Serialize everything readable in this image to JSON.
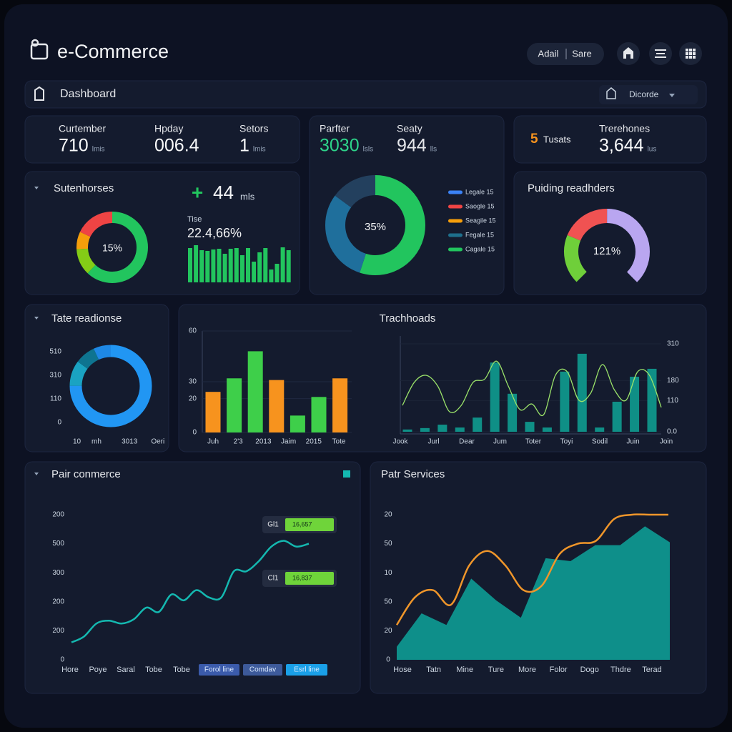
{
  "header": {
    "title": "e-Commerce",
    "user": "Adail",
    "store": "Sare"
  },
  "toolbar": {
    "title": "Dashboard",
    "filter": "Dicorde"
  },
  "stats_left": [
    {
      "label": "Curtember",
      "value": "710",
      "unit": "lmis"
    },
    {
      "label": "Hpday",
      "value": "006.4"
    },
    {
      "label": "Setors",
      "value": "1",
      "unit": "lmis"
    }
  ],
  "stats_mid": [
    {
      "label": "Parfter",
      "value": "3030",
      "unit": "lsls"
    },
    {
      "label": "Seaty",
      "value": "944",
      "unit": "lls"
    }
  ],
  "stats_right": [
    {
      "value": "5",
      "label": "Tusats"
    },
    {
      "label": "Trerehones",
      "value": "3,644",
      "unit": "lus"
    }
  ],
  "subscribers": {
    "title": "Sutenhorses",
    "donut": {
      "center": "15%",
      "values": [
        62,
        12,
        8,
        18
      ],
      "colors": [
        "#22c55e",
        "#84cc16",
        "#f59e0b",
        "#ef4444"
      ]
    },
    "change_sign": "+",
    "change": "44",
    "change_unit": "mls",
    "sub_label": "Tise",
    "rate": "22.4,66%",
    "bars": {
      "color": "#22c55e",
      "values": [
        48,
        52,
        45,
        44,
        46,
        47,
        40,
        47,
        48,
        38,
        48,
        29,
        42,
        48,
        18,
        26,
        49,
        45
      ]
    }
  },
  "share": {
    "donut": {
      "center": "35%",
      "values": [
        55,
        30,
        15
      ],
      "colors": [
        "#22c55e",
        "#1f6f9c",
        "#23405e"
      ]
    },
    "legend": [
      {
        "name": "Legale 15",
        "color": "#3b82f6"
      },
      {
        "name": "Saogle 15",
        "color": "#ef4444"
      },
      {
        "name": "Seagile 15",
        "color": "#f59e0b"
      },
      {
        "name": "Fegale 15",
        "color": "#1e6f8c"
      },
      {
        "name": "Cagale 15",
        "color": "#22c55e"
      }
    ]
  },
  "gauge": {
    "title": "Puiding readhders",
    "center": "121%",
    "values": [
      25,
      25,
      50
    ],
    "colors": [
      "#6fcf3a",
      "#f05252",
      "#b9a6f0"
    ]
  },
  "response": {
    "title": "Tate readionse",
    "y_labels": [
      "510",
      "310",
      "110",
      "0"
    ],
    "x_labels": [
      "10",
      "mh",
      "3013",
      "Oeri"
    ],
    "donut": {
      "values": [
        75,
        10,
        8,
        7
      ],
      "colors": [
        "#2196f3",
        "#1aa3c2",
        "#0e7490",
        "#1e88e5"
      ]
    }
  },
  "trends": {
    "title": "Trachhoads",
    "bars": {
      "ylim": [
        0,
        60
      ],
      "yticks": [
        0,
        20,
        30,
        60
      ],
      "values": [
        24,
        32,
        48,
        31,
        10,
        21,
        32
      ],
      "colors": [
        "#f7931e",
        "#3ecf4a",
        "#3ecf4a",
        "#f7931e",
        "#3ecf4a",
        "#3ecf4a",
        "#f7931e"
      ],
      "x_labels": [
        "Juh",
        "2'3",
        "2013",
        "Jaim",
        "2015",
        "Tote"
      ]
    },
    "combo": {
      "ylim": [
        0,
        310
      ],
      "yticks": [
        {
          "value": 0,
          "label": "0.0"
        },
        110,
        180,
        310
      ],
      "bar_color": "#0f8f86",
      "line_color": "#9be36a",
      "bars": [
        8,
        13,
        25,
        15,
        50,
        244,
        134,
        35,
        15,
        212,
        275,
        15,
        106,
        194,
        222
      ],
      "line": [
        93,
        174,
        199,
        161,
        71,
        93,
        174,
        186,
        249,
        161,
        78,
        98,
        60,
        199,
        212,
        111,
        136,
        237,
        149,
        111,
        212,
        199,
        86
      ],
      "x_labels": [
        "Jook",
        "Jurl",
        "Dear",
        "Jum",
        "Toter",
        "Toyi",
        "Sodil",
        "Juin",
        "Join"
      ]
    }
  },
  "commerce": {
    "title": "Pair conmerce",
    "ylim": [
      0,
      100
    ],
    "y_labels": [
      "200",
      "500",
      "300",
      "200",
      "200",
      "0"
    ],
    "color": "#14b8b0",
    "values": [
      12,
      16,
      25,
      27,
      25,
      28,
      36,
      33,
      45,
      41,
      48,
      43,
      43,
      61,
      61,
      68,
      78,
      82,
      78,
      80
    ],
    "x_labels": [
      "Hore",
      "Poye",
      "Saral",
      "Tobe",
      "Tobe"
    ],
    "tooltips": [
      {
        "name": "Gl1",
        "value": "16,657"
      },
      {
        "name": "Cl1",
        "value": "16,837"
      }
    ],
    "legend": [
      {
        "name": "Forol line",
        "color": "#3b5bab"
      },
      {
        "name": "Comdav",
        "color": "#3d5a9a"
      },
      {
        "name": "Esrl line",
        "color": "#1aa0e8"
      }
    ]
  },
  "services": {
    "title": "Patr Services",
    "ylim": [
      0,
      100
    ],
    "y_labels": [
      "20",
      "50",
      "10",
      "50",
      "20",
      "0"
    ],
    "area_color": "#0e8f8a",
    "line_color": "#f0962a",
    "area": [
      9,
      32,
      24,
      56,
      41,
      29,
      70,
      68,
      79,
      79,
      92,
      81
    ],
    "line": [
      24,
      43,
      48,
      38,
      65,
      75,
      65,
      48,
      51,
      73,
      80,
      82,
      97,
      100,
      100,
      100
    ],
    "x_labels": [
      "Hose",
      "Tatn",
      "Mine",
      "Ture",
      "More",
      "Folor",
      "Dogo",
      "Thdre",
      "Terad"
    ]
  }
}
